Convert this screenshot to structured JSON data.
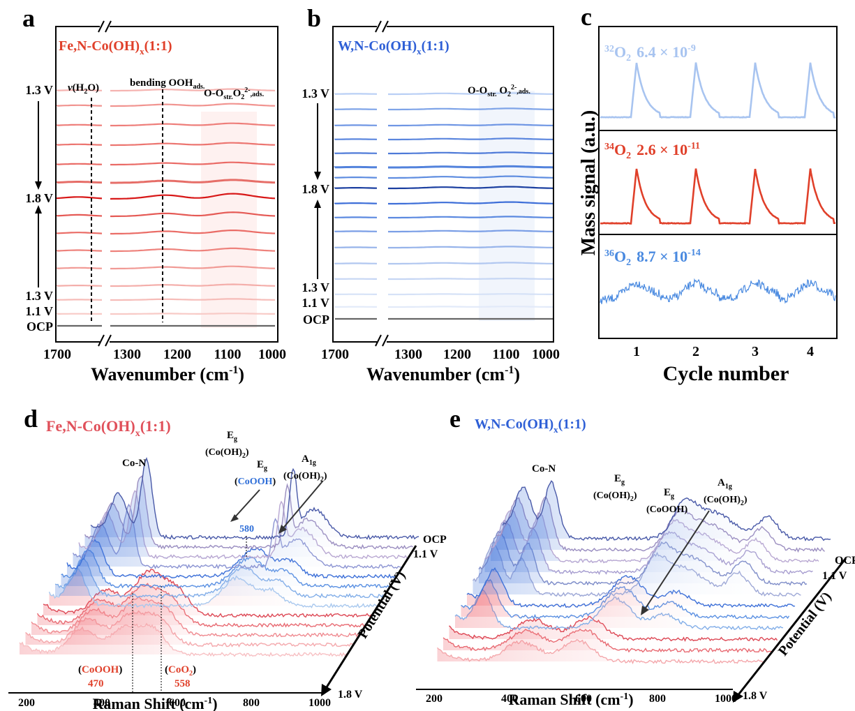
{
  "panels": {
    "a": {
      "letter": "a",
      "title_main": "Fe,N-Co(OH)",
      "title_sub": "x",
      "title_tail": "(1:1)",
      "label_vh2o_v": "ν",
      "label_vh2o_rest": "(H",
      "label_vh2o_sub": "2",
      "label_vh2o_end": "O)",
      "label_bend": "bending OOH",
      "label_bend_sub": "ads.",
      "label_oo": "O-O",
      "label_oo_sub1": "str.",
      "label_oo_mid": "O",
      "label_oo_sub2": "2",
      "label_oo_sup": "2-",
      "label_oo_sub3": ",ads.",
      "xlabel": "Wavenumber (cm",
      "xlabel_sup": "-1",
      "xlabel_end": ")",
      "ticks": [
        "1700",
        "1300",
        "1200",
        "1100",
        "1000"
      ],
      "potential_labels": [
        "1.3 V",
        "1.8 V",
        "1.3 V",
        "1.1 V",
        "OCP"
      ]
    },
    "b": {
      "letter": "b",
      "title_main": "W,N-Co(OH)",
      "title_sub": "x",
      "title_tail": "(1:1)",
      "label_oo": "O-O",
      "label_oo_sub1": "str.",
      "label_oo_mid": " O",
      "label_oo_sub2": "2",
      "label_oo_sup": "2-",
      "label_oo_sub3": ",ads.",
      "xlabel": "Wavenumber (cm",
      "xlabel_sup": "-1",
      "xlabel_end": ")",
      "ticks": [
        "1700",
        "1300",
        "1200",
        "1100",
        "1000"
      ],
      "potential_labels": [
        "1.3 V",
        "1.8 V",
        "1.3 V",
        "1.1 V",
        "OCP"
      ]
    },
    "c": {
      "letter": "c",
      "ylabel": "Mass signal (a.u.)",
      "xlabel": "Cycle number",
      "ticks": [
        "1",
        "2",
        "3",
        "4"
      ],
      "isotopes": [
        {
          "sup": "32",
          "name": "O",
          "sub": "2",
          "value": "6.4 × 10",
          "exp": "-9",
          "color": "#a8c4f0"
        },
        {
          "sup": "34",
          "name": "O",
          "sub": "2",
          "value": "2.6 × 10",
          "exp": "-11",
          "color": "#e0402a"
        },
        {
          "sup": "36",
          "name": "O",
          "sub": "2",
          "value": "8.7 × 10",
          "exp": "-14",
          "color": "#4a8ae0"
        }
      ]
    },
    "d": {
      "letter": "d",
      "title_main": "Fe,N-Co(OH)",
      "title_sub": "x",
      "title_tail": "(1:1)",
      "peak_con": "Co-N",
      "eg": "E",
      "eg_sub": "g",
      "coh2": "(Co(OH)",
      "coh2_sub": "2",
      "coh2_end": ")",
      "a1g": "A",
      "a1g_sub": "1g",
      "cooh_open": "(",
      "cooh": "CoOOH",
      "cooh_close": ")",
      "v580": "580",
      "v470": "470",
      "v558": "558",
      "coo2": "CoO",
      "coo2_sub": "2",
      "ocp": "OCP",
      "v11": "1.1 V",
      "v18": "1.8 V",
      "potential": "Potential (V)",
      "xlabel": "Raman Shift (cm",
      "xlabel_sup": "-1",
      "xlabel_end": ")",
      "ticks": [
        "200",
        "400",
        "600",
        "800",
        "1000"
      ]
    },
    "e": {
      "letter": "e",
      "title_main": "W,N-Co(OH)",
      "title_sub": "x",
      "title_tail": "(1:1)",
      "peak_con": "Co-N",
      "eg": "E",
      "eg_sub": "g",
      "coh2": "(Co(OH)",
      "coh2_sub": "2",
      "coh2_end": ")",
      "a1g": "A",
      "a1g_sub": "1g",
      "cooh": "(CoOOH)",
      "ocp": "OCP",
      "v11": "1.1 V",
      "v18": "1.8 V",
      "potential": "Potential (V)",
      "xlabel": "Raman Shift (cm",
      "xlabel_sup": "-1",
      "xlabel_end": ")",
      "ticks": [
        "200",
        "400",
        "600",
        "800",
        "1000"
      ]
    }
  },
  "chart_data": [
    {
      "panel": "a",
      "type": "line",
      "x_range": [
        1700,
        1000
      ],
      "x_break": [
        1650,
        1350
      ],
      "series_count": 14,
      "potential_sequence": [
        "OCP",
        "1.1 V",
        "1.3 V",
        "1.8 V",
        "1.3 V"
      ],
      "band_centers_cm-1": {
        "v(H2O)": 1600,
        "bending OOHads.": 1235,
        "O-O str. O2 2- ads.": 1100
      },
      "band_region_cm-1": [
        1160,
        1040
      ]
    },
    {
      "panel": "b",
      "type": "line",
      "x_range": [
        1700,
        1000
      ],
      "x_break": [
        1650,
        1350
      ],
      "series_count": 14,
      "potential_sequence": [
        "OCP",
        "1.1 V",
        "1.3 V",
        "1.8 V",
        "1.3 V"
      ],
      "band_region_cm-1": [
        1160,
        1040
      ]
    },
    {
      "panel": "c",
      "type": "line",
      "x": [
        1,
        2,
        3,
        4
      ],
      "x_range": [
        0.5,
        4.5
      ],
      "series": [
        {
          "name": "32O2",
          "scale": "6.4 × 10^-9",
          "peak_cycles": [
            1,
            2,
            3,
            4
          ]
        },
        {
          "name": "34O2",
          "scale": "2.6 × 10^-11",
          "peak_cycles": [
            1,
            2,
            3,
            4
          ]
        },
        {
          "name": "36O2",
          "scale": "8.7 × 10^-14",
          "peak_cycles": [
            1,
            2,
            3,
            4
          ]
        }
      ]
    },
    {
      "panel": "d",
      "type": "line",
      "x_range": [
        160,
        1000
      ],
      "peaks_cm-1": {
        "Co-N": 450,
        "Eg Co(OH)2": 740,
        "Eg CoOOH": 580,
        "A1g Co(OH)2": 950,
        "CoOOH": 470,
        "CoO2": 558
      },
      "potential_range": [
        "OCP",
        "1.8 V"
      ]
    },
    {
      "panel": "e",
      "type": "line",
      "x_range": [
        160,
        1000
      ],
      "peaks_cm-1": {
        "Co-N": 450,
        "Eg Co(OH)2": 740,
        "Eg CoOOH": 800,
        "A1g Co(OH)2": 950
      },
      "potential_range": [
        "OCP",
        "1.8 V"
      ]
    }
  ]
}
